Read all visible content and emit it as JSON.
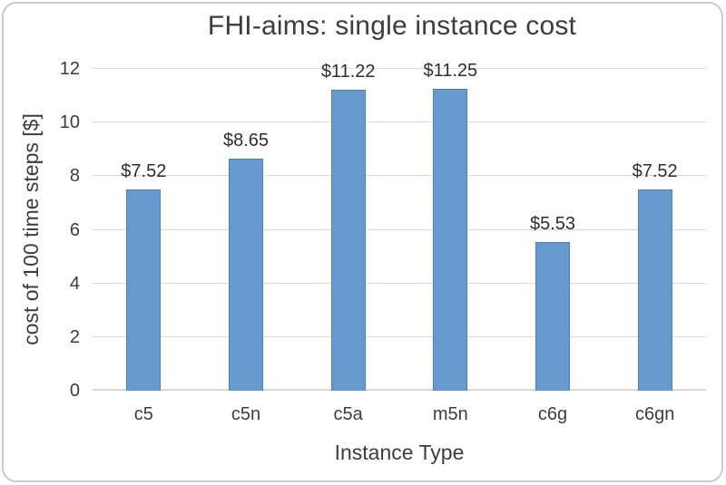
{
  "window": {
    "background_color": "#ffffff",
    "border_color": "#cbcbcb"
  },
  "chart_data": {
    "type": "bar",
    "title": "FHI-aims: single instance cost",
    "xlabel": "Instance Type",
    "ylabel": "cost of 100 time steps [$]",
    "categories": [
      "c5",
      "c5n",
      "c5a",
      "m5n",
      "c6g",
      "c6gn"
    ],
    "values": [
      7.52,
      8.65,
      11.22,
      11.25,
      5.53,
      7.52
    ],
    "data_labels": [
      "$7.52",
      "$8.65",
      "$11.22",
      "$11.25",
      "$5.53",
      "$7.52"
    ],
    "yticks": [
      0,
      2,
      4,
      6,
      8,
      10,
      12
    ],
    "ylim": [
      0,
      12
    ],
    "grid": true,
    "legend": "none",
    "bar_color": "#6699cc",
    "bar_border_color": "#4e81bc",
    "gridline_color": "#d9d9d9",
    "text_color": "#3d3d3d"
  }
}
